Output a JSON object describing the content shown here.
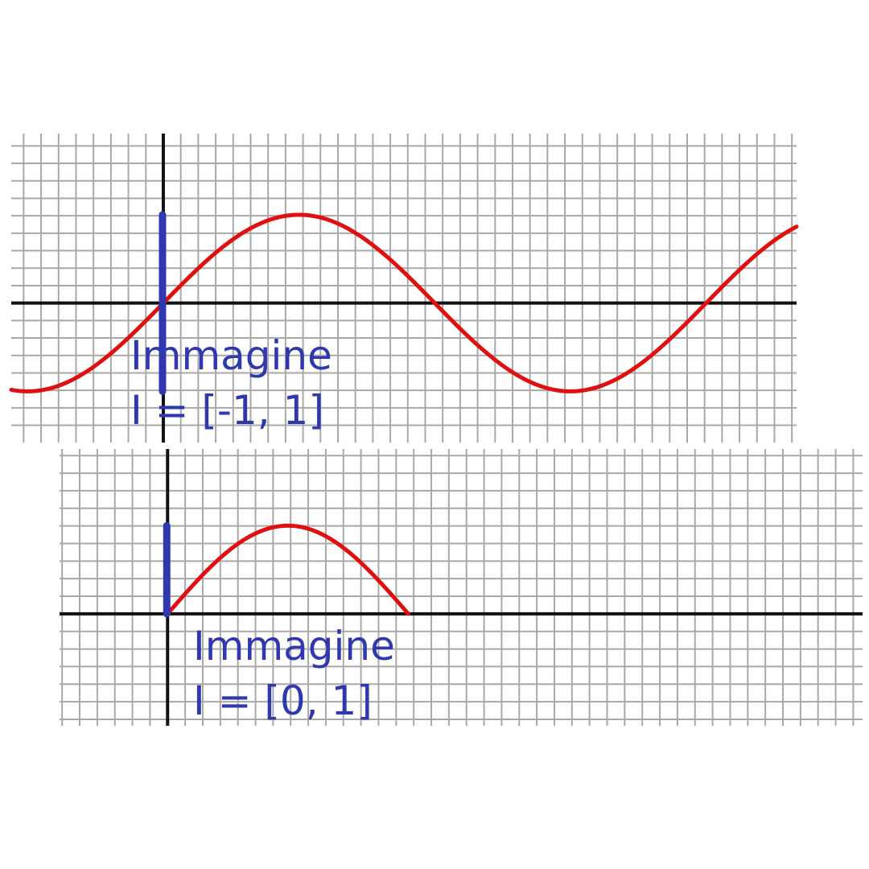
{
  "colors": {
    "curve": "#e01010",
    "image_bar": "#3038b0",
    "label": "#3038b0",
    "grid": "#a8a8a8",
    "axis": "#111111"
  },
  "chart_data": [
    {
      "type": "line",
      "function": "sin(x)",
      "x_domain": [
        -1.76,
        7.33
      ],
      "xlim": [
        -1.76,
        7.33
      ],
      "ylim": [
        -1.58,
        1.92
      ],
      "grid": true,
      "image_range": [
        -1,
        1
      ],
      "annotation": {
        "line1": "Immagine",
        "line2": "I = [-1, 1]"
      }
    },
    {
      "type": "line",
      "function": "sin(x)",
      "x_domain": [
        0,
        3.1416
      ],
      "xlim": [
        -1.41,
        9.07
      ],
      "ylim": [
        -1.27,
        1.87
      ],
      "grid": true,
      "image_range": [
        0,
        1
      ],
      "annotation": {
        "line1": "Immagine",
        "line2": "I = [0, 1]"
      }
    }
  ]
}
